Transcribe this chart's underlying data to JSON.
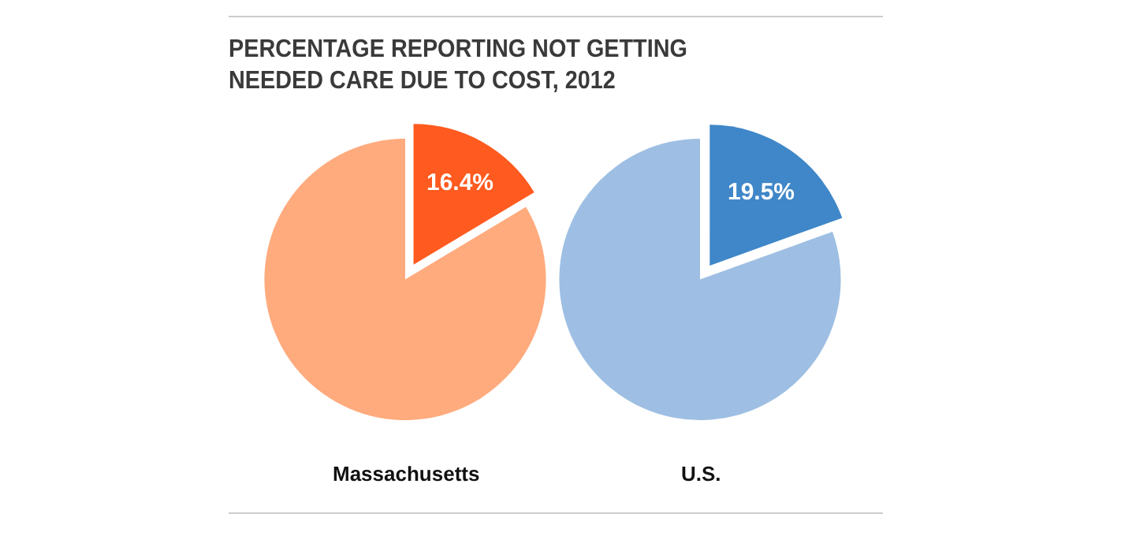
{
  "chart_data": [
    {
      "type": "pie",
      "title": "PERCENTAGE REPORTING NOT GETTING\nNEEDED CARE DUE TO COST, 2012",
      "xlabel": "Massachusetts",
      "categories": [
        null,
        null
      ],
      "values": [
        16.4,
        83.6
      ],
      "colors": [
        "#ff5a1f",
        "#ffab7e"
      ],
      "value_labels": [
        "16.4%",
        null
      ],
      "legend": false
    },
    {
      "type": "pie",
      "xlabel": "U.S.",
      "categories": [
        null,
        null
      ],
      "values": [
        19.5,
        80.5
      ],
      "colors": [
        "#3f87c8",
        "#9ebfe3"
      ],
      "value_labels": [
        "19.5%",
        null
      ],
      "legend": false
    }
  ]
}
